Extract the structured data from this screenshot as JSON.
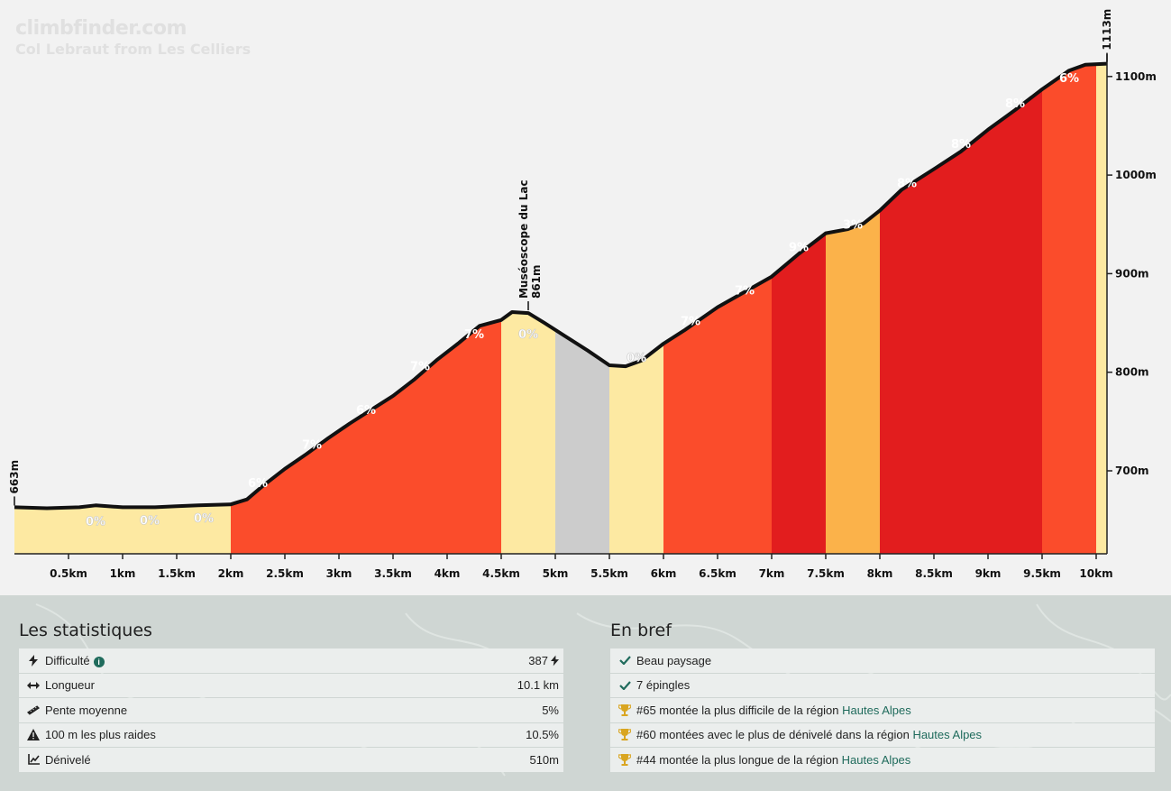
{
  "header": {
    "site": "climbfinder.com",
    "climb_name": "Col Lebraut from Les Celliers"
  },
  "colors": {
    "pct0": "#fde9a2",
    "pct3": "#fbb24a",
    "pct6_7": "#fb4c2b",
    "pct8_9": "#e21d1e",
    "descent": "#cccccc",
    "link": "#1f6b5c"
  },
  "chart_data": {
    "type": "area",
    "xlabel": "",
    "ylabel": "",
    "xlim": [
      0,
      10.1
    ],
    "ylim": [
      618,
      1150
    ],
    "x_ticks": [
      0.5,
      1,
      1.5,
      2,
      2.5,
      3,
      3.5,
      4,
      4.5,
      5,
      5.5,
      6,
      6.5,
      7,
      7.5,
      8,
      8.5,
      9,
      9.5,
      10
    ],
    "x_tick_labels": [
      "0.5km",
      "1km",
      "1.5km",
      "2km",
      "2.5km",
      "3km",
      "3.5km",
      "4km",
      "4.5km",
      "5km",
      "5.5km",
      "6km",
      "6.5km",
      "7km",
      "7.5km",
      "8km",
      "8.5km",
      "9km",
      "9.5km",
      "10km"
    ],
    "y_ticks": [
      700,
      800,
      900,
      1000,
      1100
    ],
    "y_tick_labels": [
      "700m",
      "800m",
      "900m",
      "1000m",
      "1100m"
    ],
    "profile": {
      "x": [
        0,
        0.3,
        0.6,
        0.75,
        1.0,
        1.3,
        1.5,
        1.7,
        2.0,
        2.15,
        2.3,
        2.5,
        2.7,
        2.9,
        3.1,
        3.3,
        3.5,
        3.7,
        3.9,
        4.1,
        4.3,
        4.5,
        4.6,
        4.75,
        4.9,
        5.1,
        5.3,
        5.5,
        5.65,
        5.8,
        6.0,
        6.2,
        6.5,
        7.0,
        7.25,
        7.5,
        7.7,
        7.85,
        8.0,
        8.2,
        8.5,
        8.75,
        9.0,
        9.25,
        9.5,
        9.75,
        9.9,
        10.1
      ],
      "y": [
        663,
        662,
        663,
        665,
        663,
        663,
        664,
        665,
        666,
        671,
        685,
        702,
        717,
        733,
        748,
        762,
        776,
        793,
        812,
        829,
        847,
        853,
        861,
        860,
        850,
        836,
        822,
        807,
        806,
        812,
        829,
        843,
        866,
        897,
        920,
        941,
        945,
        951,
        964,
        985,
        1006,
        1024,
        1046,
        1066,
        1087,
        1106,
        1112,
        1113
      ]
    },
    "segments": [
      {
        "x0": 0,
        "x1": 0.5,
        "pct": "",
        "color": "#fde9a2"
      },
      {
        "x0": 0.5,
        "x1": 1,
        "pct": "0%",
        "color": "#fde9a2"
      },
      {
        "x0": 1,
        "x1": 1.5,
        "pct": "0%",
        "color": "#fde9a2"
      },
      {
        "x0": 1.5,
        "x1": 2,
        "pct": "0%",
        "color": "#fde9a2"
      },
      {
        "x0": 2,
        "x1": 2.5,
        "pct": "6%",
        "color": "#fb4c2b"
      },
      {
        "x0": 2.5,
        "x1": 3,
        "pct": "7%",
        "color": "#fb4c2b"
      },
      {
        "x0": 3,
        "x1": 3.5,
        "pct": "6%",
        "color": "#fb4c2b"
      },
      {
        "x0": 3.5,
        "x1": 4,
        "pct": "7%",
        "color": "#fb4c2b"
      },
      {
        "x0": 4,
        "x1": 4.5,
        "pct": "7%",
        "color": "#fb4c2b"
      },
      {
        "x0": 4.5,
        "x1": 5,
        "pct": "0%",
        "color": "#fde9a2"
      },
      {
        "x0": 5,
        "x1": 5.5,
        "pct": "",
        "color": "#cccccc"
      },
      {
        "x0": 5.5,
        "x1": 6,
        "pct": "0%",
        "color": "#fde9a2"
      },
      {
        "x0": 6,
        "x1": 6.5,
        "pct": "7%",
        "color": "#fb4c2b"
      },
      {
        "x0": 6.5,
        "x1": 7,
        "pct": "7%",
        "color": "#fb4c2b"
      },
      {
        "x0": 7,
        "x1": 7.5,
        "pct": "9%",
        "color": "#e21d1e"
      },
      {
        "x0": 7.5,
        "x1": 8,
        "pct": "3%",
        "color": "#fbb24a"
      },
      {
        "x0": 8,
        "x1": 8.5,
        "pct": "8%",
        "color": "#e21d1e"
      },
      {
        "x0": 8.5,
        "x1": 9,
        "pct": "8%",
        "color": "#e21d1e"
      },
      {
        "x0": 9,
        "x1": 9.5,
        "pct": "8%",
        "color": "#e21d1e"
      },
      {
        "x0": 9.5,
        "x1": 10,
        "pct": "6%",
        "color": "#fb4c2b"
      },
      {
        "x0": 10,
        "x1": 10.1,
        "pct": "",
        "color": "#fde9a2"
      }
    ],
    "annotations": [
      {
        "x": 0,
        "y": 663,
        "label": "663m",
        "sublabel": ""
      },
      {
        "x": 4.75,
        "y": 861,
        "label": "Muséoscope du Lac",
        "sublabel": "861m"
      },
      {
        "x": 10.1,
        "y": 1113,
        "label": "1113m",
        "sublabel": ""
      }
    ]
  },
  "stats": {
    "title": "Les statistiques",
    "rows": [
      {
        "icon": "bolt-icon",
        "label": "Difficulté",
        "value": "387",
        "info": "i",
        "value_icon": "bolt-icon"
      },
      {
        "icon": "arrows-horizontal-icon",
        "label": "Longueur",
        "value": "10.1 km"
      },
      {
        "icon": "ruler-icon",
        "label": "Pente moyenne",
        "value": "5%"
      },
      {
        "icon": "warning-icon",
        "label": "100 m les plus raides",
        "value": "10.5%"
      },
      {
        "icon": "chart-line-icon",
        "label": "Dénivelé",
        "value": "510m"
      }
    ]
  },
  "brief": {
    "title": "En bref",
    "rows": [
      {
        "icon": "check-icon",
        "text": "Beau paysage",
        "link": ""
      },
      {
        "icon": "check-icon",
        "text": "7 épingles",
        "link": ""
      },
      {
        "icon": "trophy-icon",
        "text": "#65 montée la plus difficile de la région ",
        "link": "Hautes Alpes"
      },
      {
        "icon": "trophy-icon",
        "text": "#60 montées avec le plus de dénivelé dans la région ",
        "link": "Hautes Alpes"
      },
      {
        "icon": "trophy-icon",
        "text": "#44 montée la plus longue de la région ",
        "link": "Hautes Alpes"
      }
    ]
  }
}
